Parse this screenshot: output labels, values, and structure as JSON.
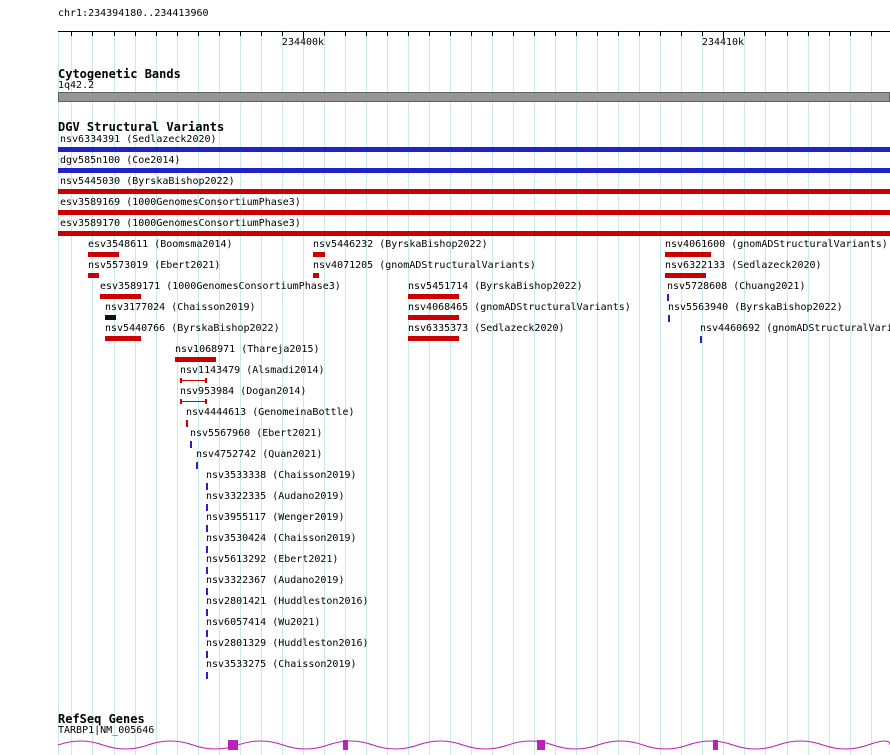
{
  "colors": {
    "grid": "#c9e9ec",
    "ruler": "#000000",
    "band_fill": "#969696",
    "band_border": "#606060",
    "variant_red": "#cc0000",
    "variant_blue": "#2222cc",
    "variant_black": "#111111",
    "gene_magenta": "#bb22bb"
  },
  "header": {
    "region_text": "chr1:234394180..234413960"
  },
  "ruler": {
    "grid_interval_bp": 500,
    "major_ticks": [
      {
        "bp": 234400000,
        "label": "234400k"
      },
      {
        "bp": 234410000,
        "label": "234410k"
      }
    ]
  },
  "sections": {
    "cytogenetic": {
      "heading": "Cytogenetic Bands",
      "band_label": "1q42.2"
    },
    "dgv": {
      "heading": "DGV Structural Variants"
    },
    "refseq": {
      "heading": "RefSeq Genes",
      "gene_label": "TARBP1|NM_005646"
    }
  },
  "chart_data": {
    "type": "genome-tracks",
    "region": {
      "chrom": "chr1",
      "start": 234394180,
      "end": 234413960
    },
    "tracks": [
      "Cytogenetic Bands",
      "DGV Structural Variants",
      "RefSeq Genes"
    ],
    "variants": [
      {
        "id": "nsv6334391",
        "study": "Sedlazeck2020",
        "color": "blue",
        "glyph": "bar",
        "start": 234394180,
        "end": 234413960,
        "row": 0
      },
      {
        "id": "dgv585n100",
        "study": "Coe2014",
        "color": "blue",
        "glyph": "bar",
        "start": 234394180,
        "end": 234413960,
        "row": 1
      },
      {
        "id": "nsv5445030",
        "study": "ByrskaBishop2022",
        "color": "red",
        "glyph": "bar",
        "start": 234394180,
        "end": 234413960,
        "row": 2
      },
      {
        "id": "esv3589169",
        "study": "1000GenomesConsortiumPhase3",
        "color": "red",
        "glyph": "bar",
        "start": 234394180,
        "end": 234413960,
        "row": 3
      },
      {
        "id": "esv3589170",
        "study": "1000GenomesConsortiumPhase3",
        "color": "red",
        "glyph": "bar",
        "start": 234394180,
        "end": 234413960,
        "row": 4
      },
      {
        "id": "esv3548611",
        "study": "Boomsma2014",
        "color": "red",
        "glyph": "bar",
        "start": 234394890,
        "end": 234395630,
        "row": 5
      },
      {
        "id": "nsv5446232",
        "study": "ByrskaBishop2022",
        "color": "red",
        "glyph": "bar",
        "start": 234400240,
        "end": 234400530,
        "row": 5
      },
      {
        "id": "nsv4061600",
        "study": "gnomADStructuralVariants",
        "color": "red",
        "glyph": "bar",
        "start": 234408610,
        "end": 234409700,
        "row": 5
      },
      {
        "id": "nsv5573019",
        "study": "Ebert2021",
        "color": "red",
        "glyph": "bar",
        "start": 234394890,
        "end": 234395160,
        "row": 6
      },
      {
        "id": "nsv4071205",
        "study": "gnomADStructuralVariants",
        "color": "red",
        "glyph": "bar",
        "start": 234400240,
        "end": 234400380,
        "row": 6
      },
      {
        "id": "nsv6322133",
        "study": "Sedlazeck2020",
        "color": "red",
        "glyph": "bar",
        "start": 234408610,
        "end": 234409580,
        "row": 6
      },
      {
        "id": "esv3589171",
        "study": "1000GenomesConsortiumPhase3",
        "color": "red",
        "glyph": "bar",
        "start": 234395180,
        "end": 234396150,
        "row": 7
      },
      {
        "id": "nsv5451714",
        "study": "ByrskaBishop2022",
        "color": "red",
        "glyph": "bar",
        "start": 234402500,
        "end": 234403710,
        "row": 7
      },
      {
        "id": "nsv5728608",
        "study": "Chuang2021",
        "color": "blue",
        "glyph": "tick",
        "start": 234408660,
        "end": 234408690,
        "row": 7
      },
      {
        "id": "nsv3177024",
        "study": "Chaisson2019",
        "color": "black",
        "glyph": "bar",
        "start": 234395300,
        "end": 234395560,
        "row": 8
      },
      {
        "id": "nsv4068465",
        "study": "gnomADStructuralVariants",
        "color": "red",
        "glyph": "bar",
        "start": 234402500,
        "end": 234403710,
        "row": 8
      },
      {
        "id": "nsv5563940",
        "study": "ByrskaBishop2022",
        "color": "blue",
        "glyph": "tick",
        "start": 234408680,
        "end": 234408710,
        "row": 8
      },
      {
        "id": "nsv5440766",
        "study": "ByrskaBishop2022",
        "color": "red",
        "glyph": "bar",
        "start": 234395300,
        "end": 234396150,
        "row": 9
      },
      {
        "id": "nsv6335373",
        "study": "Sedlazeck2020",
        "color": "red",
        "glyph": "bar",
        "start": 234402500,
        "end": 234403710,
        "row": 9
      },
      {
        "id": "nsv4460692",
        "study": "gnomADStructuralVariants",
        "color": "blue",
        "glyph": "tick",
        "start": 234409440,
        "end": 234409470,
        "row": 9
      },
      {
        "id": "nsv1068971",
        "study": "Thareja2015",
        "color": "red",
        "glyph": "bar",
        "start": 234396960,
        "end": 234397930,
        "row": 10
      },
      {
        "id": "nsv1143479",
        "study": "Alsmadi2014",
        "color": "red",
        "glyph": "span",
        "start": 234397080,
        "end": 234397720,
        "row": 11
      },
      {
        "id": "nsv953984",
        "study": "Dogan2014",
        "color": "red",
        "glyph": "span",
        "start": 234397080,
        "end": 234397720,
        "row": 12
      },
      {
        "id": "nsv4444613",
        "study": "GenomeinaBottle",
        "color": "red",
        "glyph": "tick",
        "start": 234397220,
        "end": 234397250,
        "row": 13
      },
      {
        "id": "nsv5567960",
        "study": "Ebert2021",
        "color": "blue",
        "glyph": "tick",
        "start": 234397320,
        "end": 234397350,
        "row": 14
      },
      {
        "id": "nsv4752742",
        "study": "Quan2021",
        "color": "blue",
        "glyph": "tick",
        "start": 234397460,
        "end": 234397490,
        "row": 15
      },
      {
        "id": "nsv3533338",
        "study": "Chaisson2019",
        "color": "blue",
        "glyph": "tick",
        "start": 234397700,
        "end": 234397730,
        "row": 16
      },
      {
        "id": "nsv3322335",
        "study": "Audano2019",
        "color": "blue",
        "glyph": "tick",
        "start": 234397700,
        "end": 234397730,
        "row": 17
      },
      {
        "id": "nsv3955117",
        "study": "Wenger2019",
        "color": "blue",
        "glyph": "tick",
        "start": 234397700,
        "end": 234397730,
        "row": 18
      },
      {
        "id": "nsv3530424",
        "study": "Chaisson2019",
        "color": "blue",
        "glyph": "tick",
        "start": 234397700,
        "end": 234397730,
        "row": 19
      },
      {
        "id": "nsv5613292",
        "study": "Ebert2021",
        "color": "blue",
        "glyph": "tick",
        "start": 234397700,
        "end": 234397730,
        "row": 20
      },
      {
        "id": "nsv3322367",
        "study": "Audano2019",
        "color": "blue",
        "glyph": "tick",
        "start": 234397700,
        "end": 234397730,
        "row": 21
      },
      {
        "id": "nsv2801421",
        "study": "Huddleston2016",
        "color": "blue",
        "glyph": "tick",
        "start": 234397700,
        "end": 234397730,
        "row": 22
      },
      {
        "id": "nsv6057414",
        "study": "Wu2021",
        "color": "blue",
        "glyph": "tick",
        "start": 234397700,
        "end": 234397730,
        "row": 23
      },
      {
        "id": "nsv2801329",
        "study": "Huddleston2016",
        "color": "blue",
        "glyph": "tick",
        "start": 234397700,
        "end": 234397730,
        "row": 24
      },
      {
        "id": "nsv3533275",
        "study": "Chaisson2019",
        "color": "blue",
        "glyph": "tick",
        "start": 234397700,
        "end": 234397730,
        "row": 25
      }
    ],
    "gene": {
      "name": "TARBP1|NM_005646",
      "start": 234394180,
      "end": 234413960,
      "exons": [
        [
          234398220,
          234398460
        ],
        [
          234400960,
          234401070
        ],
        [
          234405570,
          234405760
        ],
        [
          234409750,
          234409870
        ]
      ]
    }
  }
}
